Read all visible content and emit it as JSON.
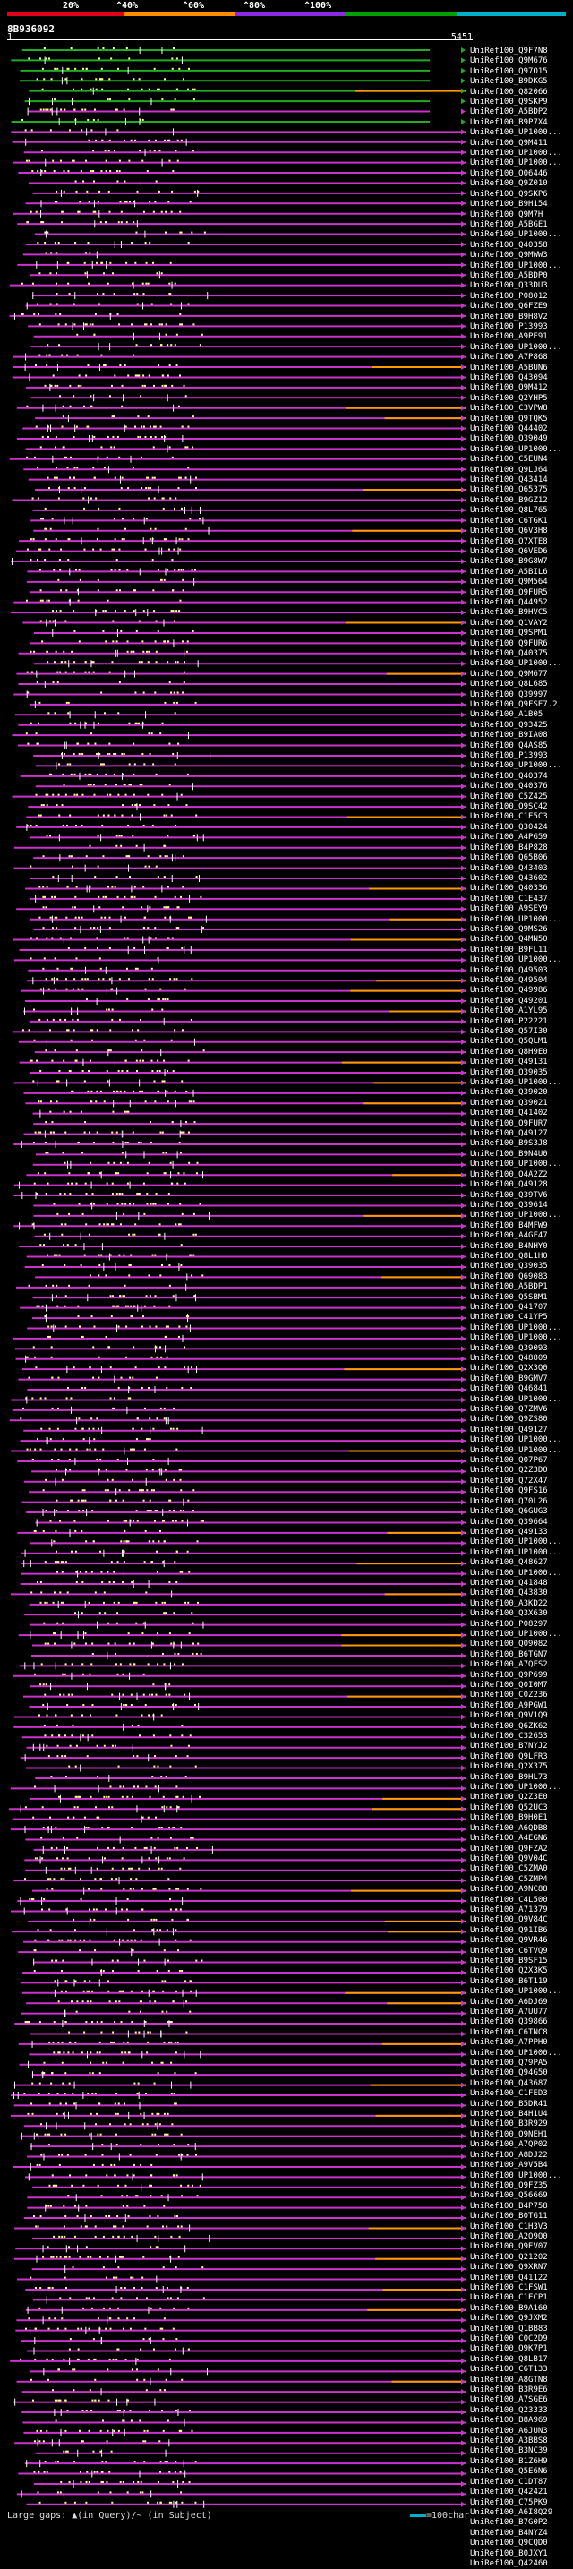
{
  "legend": {
    "labels": [
      "20%",
      "^40%",
      "^60%",
      "^80%",
      "^100%"
    ],
    "colors": [
      "#e0001a",
      "#ff8c00",
      "#8a2be2",
      "#00a000",
      "#00b0c8"
    ]
  },
  "query": {
    "title": "8B936092",
    "start": "1",
    "end": "5451"
  },
  "colors": {
    "hit_magenta": "#cc33cc",
    "hit_green": "#22aa22",
    "hit_orange": "#ff9900",
    "dots": "#ffff88"
  },
  "labels": [
    "UniRef100_Q9F7N8",
    "UniRef100_Q9M676",
    "UniRef100_Q97O15",
    "UniRef100_B9DKG5",
    "UniRef100_Q82066",
    "UniRef100_Q9SKP9",
    "UniRef100_A5BDP2",
    "UniRef100_B9P7X4",
    "UniRef100_UP1000...",
    "UniRef100_Q9M411",
    "UniRef100_UP1000...",
    "UniRef100_UP1000...",
    "UniRef100_Q06446",
    "UniRef100_Q9Z010",
    "UniRef100_Q9SKP6",
    "UniRef100_B9H154",
    "UniRef100_Q9M7H",
    "UniRef100_A5BGE1",
    "UniRef100_UP1000...",
    "UniRef100_Q40358",
    "UniRef100_Q9MWW3",
    "UniRef100_UP1000...",
    "UniRef100_A5BDP0",
    "UniRef100_Q33DU3",
    "UniRef100_P08012",
    "UniRef100_Q6FZE9",
    "UniRef100_B9H8V2",
    "UniRef100_P13993",
    "UniRef100_A9PE91",
    "UniRef100_UP1000...",
    "UniRef100_A7P868",
    "UniRef100_A5BUN6",
    "UniRef100_Q43094",
    "UniRef100_Q9M412",
    "UniRef100_Q2YHP5",
    "UniRef100_C3VPW8",
    "UniRef100_Q9TQK5",
    "UniRef100_Q44402",
    "UniRef100_Q39049",
    "UniRef100_UP1000...",
    "UniRef100_C5EUN4",
    "UniRef100_Q9LJ64",
    "UniRef100_Q43414",
    "UniRef100_Q65375",
    "UniRef100_B9GZ12",
    "UniRef100_Q8L765",
    "UniRef100_C6TGK1",
    "UniRef100_Q6V3H8",
    "UniRef100_Q7XTE8",
    "UniRef100_Q6VED6",
    "UniRef100_B9G8W7",
    "UniRef100_A5BIL6",
    "UniRef100_Q9M564",
    "UniRef100_Q9FUR5",
    "UniRef100_Q44952",
    "UniRef100_B9HVC5",
    "UniRef100_Q1VAY2",
    "UniRef100_Q9SPM1",
    "UniRef100_Q9FUR6",
    "UniRef100_Q40375",
    "UniRef100_UP1000...",
    "UniRef100_Q9M677",
    "UniRef100_Q8L685",
    "UniRef100_Q39997",
    "UniRef100_Q9FSE7.2",
    "UniRef100_A1B05",
    "UniRef100_Q93425",
    "UniRef100_B9IA08",
    "UniRef100_Q4AS85",
    "UniRef100_P13993",
    "UniRef100_UP1000...",
    "UniRef100_Q40374",
    "UniRef100_Q40376",
    "UniRef100_C5Z425",
    "UniRef100_Q9SC42",
    "UniRef100_C1E5C3",
    "UniRef100_Q30424",
    "UniRef100_A4PG59",
    "UniRef100_B4P828",
    "UniRef100_Q65B06",
    "UniRef100_Q43403",
    "UniRef100_Q43602",
    "UniRef100_Q40336",
    "UniRef100_C1E437",
    "UniRef100_A9SEY9",
    "UniRef100_UP1000...",
    "UniRef100_Q9MS26",
    "UniRef100_Q4MN50",
    "UniRef100_B9FL11",
    "UniRef100_UP1000...",
    "UniRef100_Q49503",
    "UniRef100_Q49504",
    "UniRef100_Q49986",
    "UniRef100_Q49201",
    "UniRef100_A1YL95",
    "UniRef100_P22221",
    "UniRef100_Q57I30",
    "UniRef100_Q5QLM1",
    "UniRef100_Q8H9E0",
    "UniRef100_Q49131",
    "UniRef100_Q39035",
    "UniRef100_UP1000...",
    "UniRef100_Q39020",
    "UniRef100_Q39021",
    "UniRef100_Q41402",
    "UniRef100_Q9FUR7",
    "UniRef100_Q49127",
    "UniRef100_B9S3J8",
    "UniRef100_B9N4U0",
    "UniRef100_UP1000...",
    "UniRef100_Q4A2Z2",
    "UniRef100_Q49128",
    "UniRef100_Q39TV6",
    "UniRef100_Q39614",
    "UniRef100_UP1000...",
    "UniRef100_B4MFW9",
    "UniRef100_A4GF47",
    "UniRef100_B4NHY0",
    "UniRef100_Q8L1H0",
    "UniRef100_Q39035",
    "UniRef100_Q69083",
    "UniRef100_A5BDP1",
    "UniRef100_Q5SBM1",
    "UniRef100_Q41707",
    "UniRef100_C41YP5",
    "UniRef100_UP1000...",
    "UniRef100_UP1000...",
    "UniRef100_Q39093",
    "UniRef100_Q48809",
    "UniRef100_Q2X3Q0",
    "UniRef100_B9GMV7",
    "UniRef100_Q46841",
    "UniRef100_UP1000...",
    "UniRef100_Q7ZMV6",
    "UniRef100_Q9ZS80",
    "UniRef100_Q49127",
    "UniRef100_UP1000...",
    "UniRef100_UP1000...",
    "UniRef100_Q07P67",
    "UniRef100_Q2Z3D0",
    "UniRef100_Q72X47",
    "UniRef100_Q9FS16",
    "UniRef100_Q70L26",
    "UniRef100_Q6GUG3",
    "UniRef100_Q39664",
    "UniRef100_Q49133",
    "UniRef100_UP1000...",
    "UniRef100_UP1000...",
    "UniRef100_Q48627",
    "UniRef100_UP1000...",
    "UniRef100_Q41848",
    "UniRef100_Q43830",
    "UniRef100_A3KD22",
    "UniRef100_Q3X630",
    "UniRef100_P08297",
    "UniRef100_UP1000...",
    "UniRef100_Q09082",
    "UniRef100_B6TGN7",
    "UniRef100_A7QFS2",
    "UniRef100_Q9P699",
    "UniRef100_Q0I0M7",
    "UniRef100_C0Z236",
    "UniRef100_A9PGW1",
    "UniRef100_Q9V1Q9",
    "UniRef100_Q6ZK62",
    "UniRef100_C32653",
    "UniRef100_B7NYJ2",
    "UniRef100_Q9LFR3",
    "UniRef100_Q2X375",
    "UniRef100_B9HL73",
    "UniRef100_UP1000...",
    "UniRef100_Q2Z3E0",
    "UniRef100_Q52UC3",
    "UniRef100_B9H0E1",
    "UniRef100_A6QDB8",
    "UniRef100_A4EGN6",
    "UniRef100_Q9FZA2",
    "UniRef100_Q9V04C",
    "UniRef100_C5ZMA0",
    "UniRef100_C5ZMP4",
    "UniRef100_A9NC88",
    "UniRef100_C4L500",
    "UniRef100_A71379",
    "UniRef100_Q9V84C",
    "UniRef100_Q91IB6",
    "UniRef100_Q9VR46",
    "UniRef100_C6TVQ9",
    "UniRef100_B9SF15",
    "UniRef100_Q2X3K5",
    "UniRef100_B6T119",
    "UniRef100_UP1000...",
    "UniRef100_A6DJ69",
    "UniRef100_A7UU77",
    "UniRef100_Q39866",
    "UniRef100_C6TNC8",
    "UniRef100_A7PPH0",
    "UniRef100_UP1000...",
    "UniRef100_Q79PA5",
    "UniRef100_Q94G50",
    "UniRef100_Q43687",
    "UniRef100_C1FED3",
    "UniRef100_B5DR41",
    "UniRef100_B4H1U4",
    "UniRef100_B3R929",
    "UniRef100_Q9NEH1",
    "UniRef100_A7QP02",
    "UniRef100_A8DJ22",
    "UniRef100_A9V5B4",
    "UniRef100_UP1000...",
    "UniRef100_Q9FZ35",
    "UniRef100_Q56669",
    "UniRef100_B4P758",
    "UniRef100_B0TG11",
    "UniRef100_C1H3V3",
    "UniRef100_A2Q9Q0",
    "UniRef100_Q9EV07",
    "UniRef100_Q21202",
    "UniRef100_Q9XRN7",
    "UniRef100_Q41122",
    "UniRef100_C1FSW1",
    "UniRef100_C1ECP1",
    "UniRef100_B9A160",
    "UniRef100_Q9JXM2",
    "UniRef100_Q1BB83",
    "UniRef100_C0C2D9",
    "UniRef100_Q9K7P1",
    "UniRef100_Q8LB17",
    "UniRef100_C6T133",
    "UniRef100_A8GTN8",
    "UniRef100_B3R9E6",
    "UniRef100_A7SGE6",
    "UniRef100_Q23333",
    "UniRef100_B8A969",
    "UniRef100_A6JUN3",
    "UniRef100_A3BBS8",
    "UniRef100_B3NC39",
    "UniRef100_B1Z6H9",
    "UniRef100_Q5E6N6",
    "UniRef100_C1DT87",
    "UniRef100_Q42421",
    "UniRef100_C75PK9",
    "UniRef100_A6I8Q29",
    "UniRef100_B7G0P2",
    "UniRef100_B4NYZ4",
    "UniRef100_Q9CQD0",
    "UniRef100_B0JXY1",
    "UniRef100_Q42460"
  ],
  "footer": {
    "text": "Large gaps: ▲(in Query)/~ (in Subject)",
    "char_scale": "=100char"
  }
}
